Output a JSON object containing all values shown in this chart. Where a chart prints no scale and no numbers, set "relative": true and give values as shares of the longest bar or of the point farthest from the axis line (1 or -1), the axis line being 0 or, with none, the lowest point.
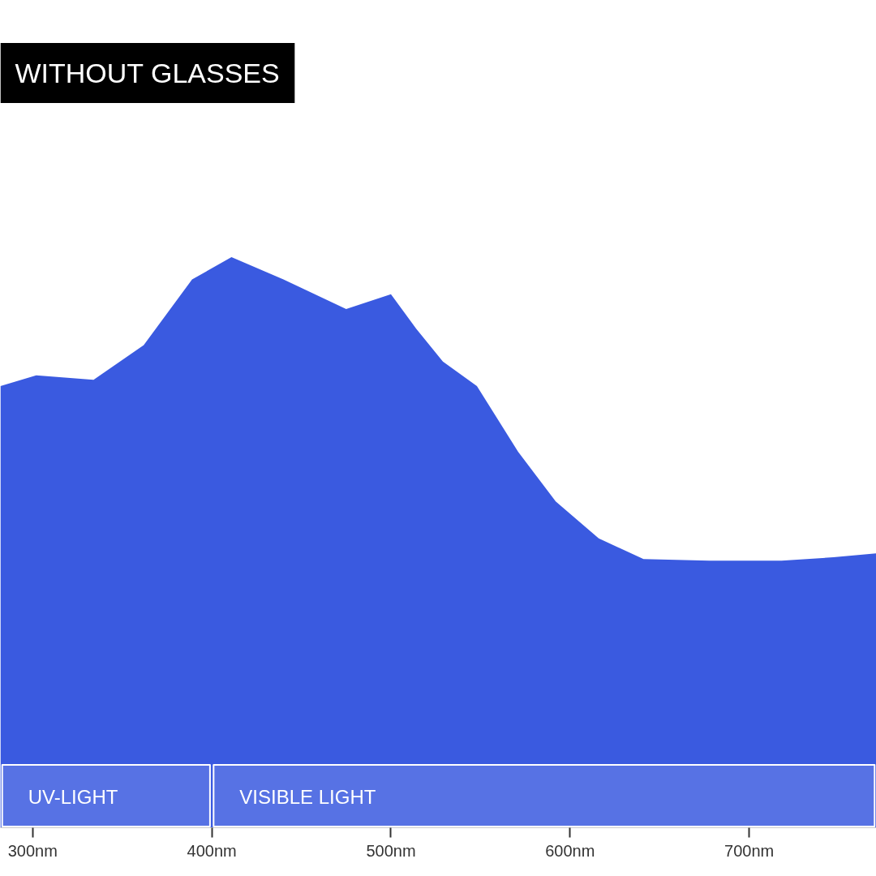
{
  "chart_data": {
    "type": "area",
    "title": "WITHOUT GLASSES",
    "relative": true,
    "grid": false,
    "color": "#3a5ae0",
    "x": [
      282,
      302,
      334,
      362,
      389,
      411,
      440,
      475,
      500,
      514,
      529,
      548,
      571,
      592,
      616,
      641,
      678,
      718,
      747,
      771
    ],
    "values": [
      0.774,
      0.793,
      0.785,
      0.846,
      0.961,
      1.0,
      0.961,
      0.909,
      0.935,
      0.875,
      0.817,
      0.774,
      0.659,
      0.572,
      0.507,
      0.471,
      0.468,
      0.468,
      0.474,
      0.481
    ],
    "xlim": [
      282,
      771
    ],
    "xticks": [
      {
        "value": 300,
        "label": "300nm"
      },
      {
        "value": 400,
        "label": "400nm"
      },
      {
        "value": 500,
        "label": "500nm"
      },
      {
        "value": 600,
        "label": "600nm"
      },
      {
        "value": 700,
        "label": "700nm"
      }
    ],
    "bands": [
      {
        "axis": "x",
        "from": 282,
        "to": 400,
        "label": "UV-LIGHT",
        "color": "#ffffff"
      },
      {
        "axis": "x",
        "from": 400,
        "to": 771,
        "label": "VISIBLE LIGHT",
        "color": "#ffffff"
      }
    ]
  }
}
